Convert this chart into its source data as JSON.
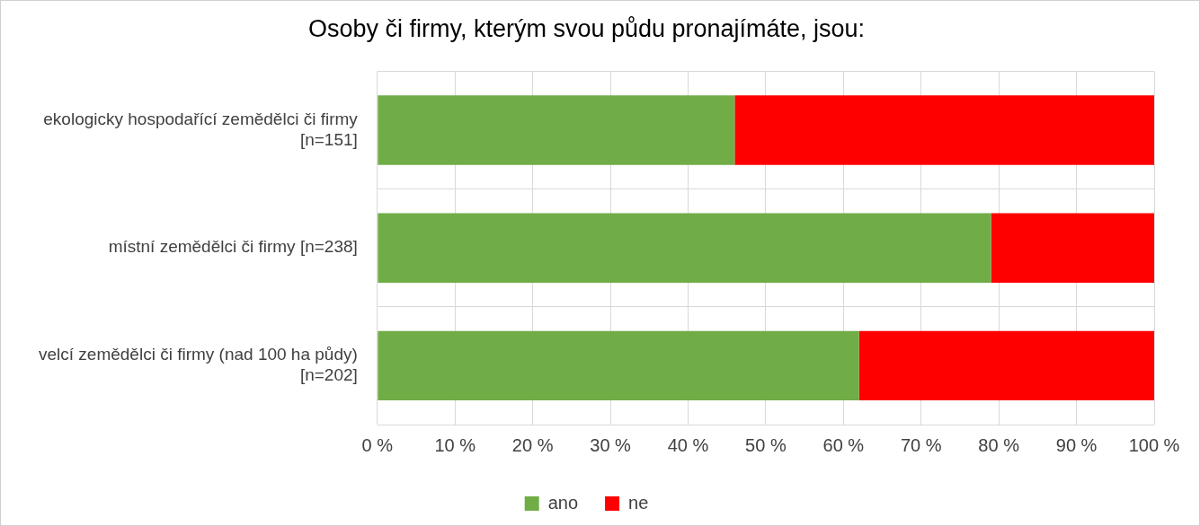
{
  "chart_data": {
    "type": "bar",
    "title": "Osoby či firmy, kterým svou půdu pronajímáte, jsou:",
    "orientation": "horizontal",
    "stacked": true,
    "categories": [
      "ekologicky hospodařící zemědělci či firmy [n=151]",
      "místní zemědělci či firmy [n=238]",
      "velcí zemědělci či firmy (nad 100 ha půdy) [n=202]"
    ],
    "series": [
      {
        "name": "ano",
        "color": "#70ad47",
        "values": [
          46,
          79,
          62
        ]
      },
      {
        "name": "ne",
        "color": "#ff0000",
        "values": [
          54,
          21,
          38
        ]
      }
    ],
    "xlim": [
      0,
      100
    ],
    "xticks": [
      {
        "value": 0,
        "label": "0 %"
      },
      {
        "value": 10,
        "label": "10 %"
      },
      {
        "value": 20,
        "label": "20 %"
      },
      {
        "value": 30,
        "label": "30 %"
      },
      {
        "value": 40,
        "label": "40 %"
      },
      {
        "value": 50,
        "label": "50 %"
      },
      {
        "value": 60,
        "label": "60 %"
      },
      {
        "value": 70,
        "label": "70 %"
      },
      {
        "value": 80,
        "label": "80 %"
      },
      {
        "value": 90,
        "label": "90 %"
      },
      {
        "value": 100,
        "label": "100 %"
      }
    ],
    "grid": true,
    "legend": "bottom"
  }
}
